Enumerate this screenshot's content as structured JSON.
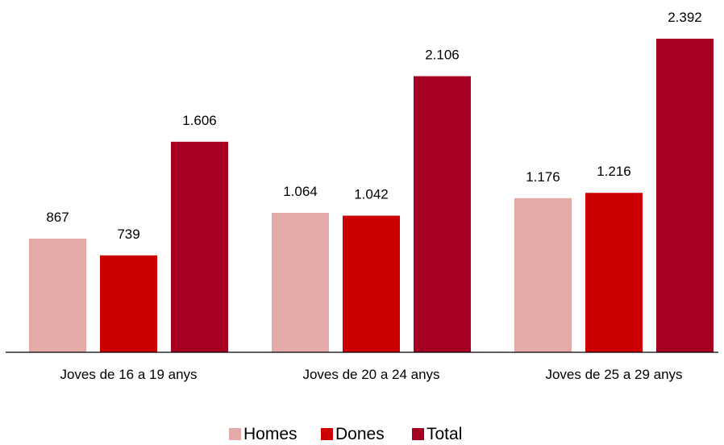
{
  "chart_data": {
    "type": "bar",
    "title": "",
    "xlabel": "",
    "ylabel": "",
    "categories": [
      "Joves de 16 a 19 anys",
      "Joves de 20 a 24 anys",
      "Joves de 25 a 29 anys"
    ],
    "series": [
      {
        "name": "Homes",
        "values": [
          867,
          1064,
          1176
        ],
        "labels": [
          "867",
          "1.064",
          "1.176"
        ],
        "color": "#e3aaa8"
      },
      {
        "name": "Dones",
        "values": [
          739,
          1042,
          1216
        ],
        "labels": [
          "739",
          "1.042",
          "1.216"
        ],
        "color": "#cc0000"
      },
      {
        "name": "Total",
        "values": [
          1606,
          2106,
          2392
        ],
        "labels": [
          "1.606",
          "2.106",
          "2.392"
        ],
        "color": "#a50021"
      }
    ],
    "ylim": [
      0,
      2392
    ],
    "grid": false,
    "y_axis_visible": false,
    "legend_position": "bottom-center"
  }
}
